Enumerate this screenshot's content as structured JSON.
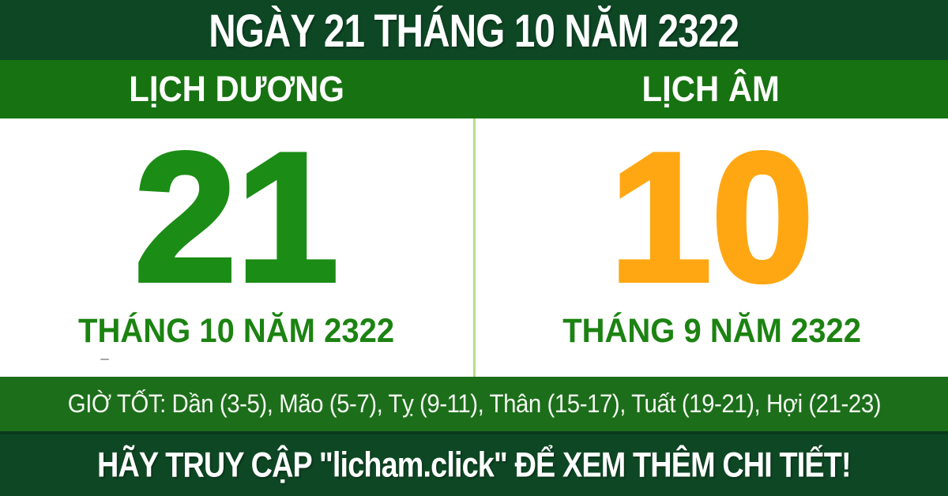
{
  "header": {
    "title": "NGÀY 21 THÁNG 10 NĂM 2322"
  },
  "solar": {
    "label": "LỊCH DƯƠNG",
    "day": "21",
    "month_year": "THÁNG 10 NĂM 2322"
  },
  "lunar": {
    "label": "LỊCH ÂM",
    "day": "10",
    "month_year": "THÁNG 9 NĂM 2322"
  },
  "good_hours": {
    "text": "GIỜ TỐT: Dần (3-5), Mão (5-7), Tỵ (9-11), Thân (15-17), Tuất (19-21), Hợi (21-23)"
  },
  "footer": {
    "text": "HÃY TRUY CẬP \"licham.click\" ĐỂ XEM THÊM CHI TIẾT!"
  },
  "colors": {
    "dark_green": "#0e4724",
    "band_green": "#177211",
    "giotot_green": "#1c6e1a",
    "number_green": "#1b8c15",
    "month_green": "#1c8312",
    "orange": "#ffa713",
    "divider_green": "#b6dd85",
    "dark_line": "#0a3a1d",
    "text_white": "#ffffff"
  }
}
